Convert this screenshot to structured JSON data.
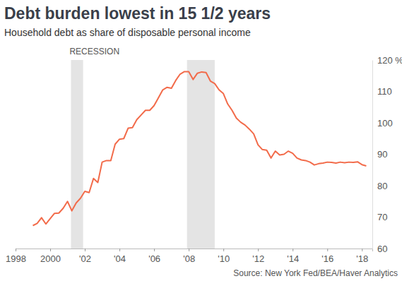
{
  "chart_data": {
    "type": "line",
    "title": "Debt burden lowest in 15 1/2 years",
    "subtitle": "Household debt as share of disposable personal income",
    "source": "Source: New York Fed/BEA/Haver Analytics",
    "recession_label": "RECESSION",
    "recessions": [
      {
        "start": 2001.2,
        "end": 2001.9
      },
      {
        "start": 2007.9,
        "end": 2009.5
      }
    ],
    "color": "#f26b4a",
    "grid": false,
    "x": [
      1999.0,
      1999.25,
      1999.5,
      1999.75,
      2000.0,
      2000.25,
      2000.5,
      2000.75,
      2001.0,
      2001.25,
      2001.5,
      2001.75,
      2002.0,
      2002.25,
      2002.5,
      2002.75,
      2003.0,
      2003.25,
      2003.5,
      2003.75,
      2004.0,
      2004.25,
      2004.5,
      2004.75,
      2005.0,
      2005.25,
      2005.5,
      2005.75,
      2006.0,
      2006.25,
      2006.5,
      2006.75,
      2007.0,
      2007.25,
      2007.5,
      2007.75,
      2008.0,
      2008.25,
      2008.5,
      2008.75,
      2009.0,
      2009.25,
      2009.5,
      2009.75,
      2010.0,
      2010.25,
      2010.5,
      2010.75,
      2011.0,
      2011.25,
      2011.5,
      2011.75,
      2012.0,
      2012.25,
      2012.5,
      2012.75,
      2013.0,
      2013.25,
      2013.5,
      2013.75,
      2014.0,
      2014.25,
      2014.5,
      2014.75,
      2015.0,
      2015.25,
      2015.5,
      2015.75,
      2016.0,
      2016.25,
      2016.5,
      2016.75,
      2017.0,
      2017.25,
      2017.5,
      2017.75,
      2018.0,
      2018.25
    ],
    "values": [
      67.3,
      68,
      69.8,
      67.8,
      69.5,
      71.2,
      71.3,
      72.8,
      75,
      72,
      74.5,
      76,
      78.2,
      77.8,
      82.3,
      81,
      87.5,
      88,
      88,
      93.2,
      94.8,
      95,
      98.3,
      98.5,
      101,
      102.5,
      104,
      104,
      105.5,
      108,
      110.5,
      111.3,
      111,
      113.5,
      115.5,
      116.3,
      116.3,
      113.8,
      115.8,
      116.2,
      116,
      113.3,
      112.5,
      110.5,
      109.3,
      106,
      104,
      101.5,
      100.2,
      99.3,
      98,
      96.5,
      93,
      91.5,
      91.3,
      88.8,
      91,
      89.8,
      90,
      91,
      90.3,
      88.8,
      88.2,
      88,
      87.5,
      86.6,
      87,
      87.2,
      87.5,
      87.4,
      87.2,
      87.5,
      87.3,
      87.5,
      87.4,
      87.6,
      86.7,
      86.3
    ],
    "xlim": [
      1998,
      2018.6
    ],
    "xticks": [
      1998,
      2000,
      {
        "value": 2002,
        "label": "'02"
      },
      {
        "value": 2004,
        "label": "'04"
      },
      {
        "value": 2006,
        "label": "'06"
      },
      {
        "value": 2008,
        "label": "'08"
      },
      {
        "value": 2010,
        "label": "'10"
      },
      {
        "value": 2012,
        "label": "'12"
      },
      {
        "value": 2014,
        "label": "'14"
      },
      {
        "value": 2016,
        "label": "'16"
      },
      {
        "value": 2018,
        "label": "'18"
      }
    ],
    "ylim": [
      60,
      120
    ],
    "yticks": [
      60,
      70,
      80,
      90,
      100,
      110,
      {
        "value": 120,
        "label": "120 %"
      }
    ]
  }
}
